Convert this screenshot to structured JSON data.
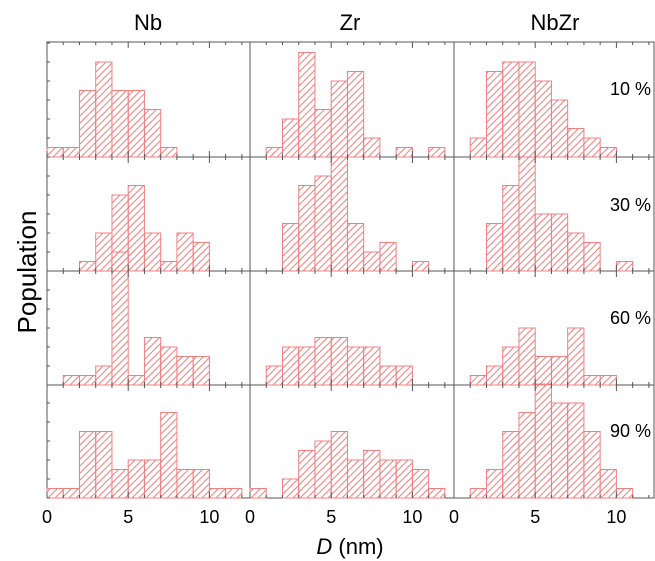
{
  "chart_data": {
    "type": "bar",
    "subtype": "histogram-grid",
    "columns": [
      "Nb",
      "Zr",
      "NbZr"
    ],
    "rows": [
      "10 %",
      "30 %",
      "60 %",
      "90 %"
    ],
    "xlabel_italic": "D",
    "xlabel_unit": " (nm)",
    "ylabel": "Population",
    "xlim": [
      0,
      12.5
    ],
    "xticks": [
      0,
      5,
      10
    ],
    "bin_width": 1,
    "bar_color": "#f08080",
    "grid": false,
    "panels": [
      [
        {
          "x": [
            0.5,
            1.5,
            2.5,
            3.5,
            4.5,
            5.5,
            6.5,
            7.5
          ],
          "values": [
            1,
            1,
            7,
            10,
            7,
            7,
            5,
            1
          ]
        },
        {
          "x": [
            2.5,
            3.5,
            4.5,
            5.5,
            6.5,
            7.5,
            8.5,
            9.5
          ],
          "values": [
            1,
            4,
            8,
            9,
            4,
            1,
            4,
            3
          ]
        },
        {
          "x": [
            1.5,
            2.5,
            3.5,
            4.5,
            5.5,
            6.5,
            7.5,
            8.5,
            9.5
          ],
          "values": [
            1,
            1,
            2,
            14,
            1,
            5,
            4,
            3,
            3
          ]
        },
        {
          "x": [
            0.5,
            1.5,
            2.5,
            3.5,
            4.5,
            5.5,
            6.5,
            7.5,
            8.5,
            9.5,
            10.5,
            11.5
          ],
          "values": [
            1,
            1,
            7,
            7,
            3,
            4,
            4,
            9,
            3,
            3,
            1,
            1
          ]
        }
      ],
      [
        {
          "x": [
            1.5,
            2.5,
            3.5,
            4.5,
            5.5,
            6.5,
            7.5,
            8.5,
            9.5,
            10.5,
            11.5
          ],
          "values": [
            1,
            4,
            11,
            5,
            8,
            9,
            2,
            0,
            1,
            0,
            1
          ]
        },
        {
          "x": [
            2.5,
            3.5,
            4.5,
            5.5,
            6.5,
            7.5,
            8.5,
            9.5,
            10.5
          ],
          "values": [
            5,
            9,
            10,
            12,
            5,
            2,
            3,
            0,
            1
          ]
        },
        {
          "x": [
            1.5,
            2.5,
            3.5,
            4.5,
            5.5,
            6.5,
            7.5,
            8.5,
            9.5
          ],
          "values": [
            2,
            4,
            4,
            5,
            5,
            4,
            4,
            2,
            2
          ]
        },
        {
          "x": [
            0.5,
            1.5,
            2.5,
            3.5,
            4.5,
            5.5,
            6.5,
            7.5,
            8.5,
            9.5,
            10.5,
            11.5
          ],
          "values": [
            1,
            0,
            2,
            5,
            6,
            7,
            4,
            5,
            4,
            4,
            3,
            1
          ]
        }
      ],
      [
        {
          "x": [
            1.5,
            2.5,
            3.5,
            4.5,
            5.5,
            6.5,
            7.5,
            8.5,
            9.5
          ],
          "values": [
            2,
            9,
            10,
            10,
            8,
            6,
            3,
            2,
            1
          ]
        },
        {
          "x": [
            2.5,
            3.5,
            4.5,
            5.5,
            6.5,
            7.5,
            8.5,
            9.5,
            10.5
          ],
          "values": [
            5,
            9,
            12,
            6,
            6,
            4,
            3,
            0,
            1
          ]
        },
        {
          "x": [
            1.5,
            2.5,
            3.5,
            4.5,
            5.5,
            6.5,
            7.5,
            8.5,
            9.5
          ],
          "values": [
            1,
            2,
            4,
            6,
            3,
            3,
            6,
            1,
            1
          ]
        },
        {
          "x": [
            1.5,
            2.5,
            3.5,
            4.5,
            5.5,
            6.5,
            7.5,
            8.5,
            9.5,
            10.5
          ],
          "values": [
            1,
            3,
            7,
            9,
            12,
            10,
            10,
            7,
            3,
            1
          ]
        }
      ]
    ]
  }
}
